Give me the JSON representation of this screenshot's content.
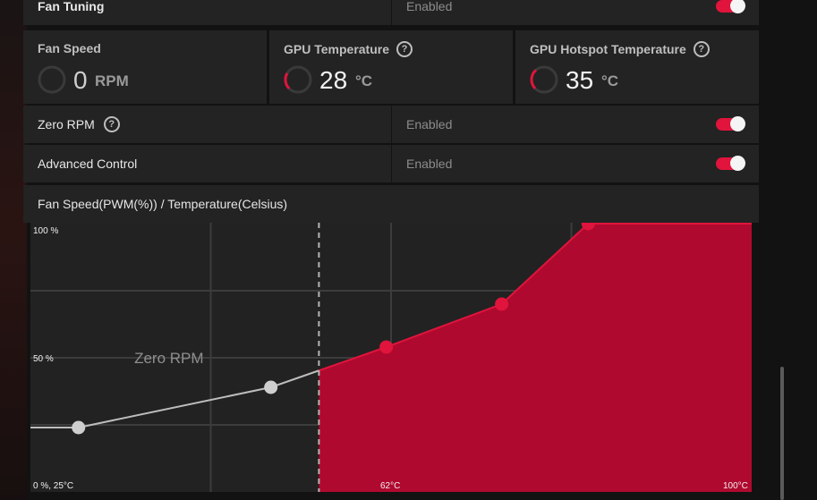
{
  "fan_tuning": {
    "label": "Fan Tuning",
    "status": "Enabled",
    "enabled": true
  },
  "metrics": {
    "fan_speed": {
      "title": "Fan Speed",
      "value": "0",
      "unit": "RPM",
      "gauge_fill": 0.0
    },
    "gpu_temperature": {
      "title": "GPU Temperature",
      "value": "28",
      "unit": "°C",
      "gauge_fill": 0.28
    },
    "gpu_hotspot_temperature": {
      "title": "GPU Hotspot Temperature",
      "value": "35",
      "unit": "°C",
      "gauge_fill": 0.35
    }
  },
  "zero_rpm": {
    "label": "Zero RPM",
    "status": "Enabled",
    "enabled": true
  },
  "advanced_control": {
    "label": "Advanced Control",
    "status": "Enabled",
    "enabled": true
  },
  "chart_title": "Fan Speed(PWM(%)) / Temperature(Celsius)",
  "colors": {
    "accent": "#e0143c",
    "fill": "#b0092f",
    "inactive_point": "#cfcfcf",
    "background": "#222222"
  },
  "chart_data": {
    "type": "line",
    "x_unit": "°C",
    "y_unit": "%",
    "xlim": [
      25,
      100
    ],
    "ylim": [
      0,
      100
    ],
    "y_tick_labels": {
      "top": "100 %",
      "mid": "50 %",
      "origin": "0 %, 25°C"
    },
    "x_tick_labels": {
      "mid": "62°C",
      "max": "100°C"
    },
    "zero_rpm_label": "Zero RPM",
    "zero_rpm_threshold": 55,
    "points": [
      {
        "x": 30,
        "y": 24
      },
      {
        "x": 50,
        "y": 39
      },
      {
        "x": 62,
        "y": 54
      },
      {
        "x": 74,
        "y": 70
      },
      {
        "x": 83,
        "y": 100
      }
    ]
  }
}
